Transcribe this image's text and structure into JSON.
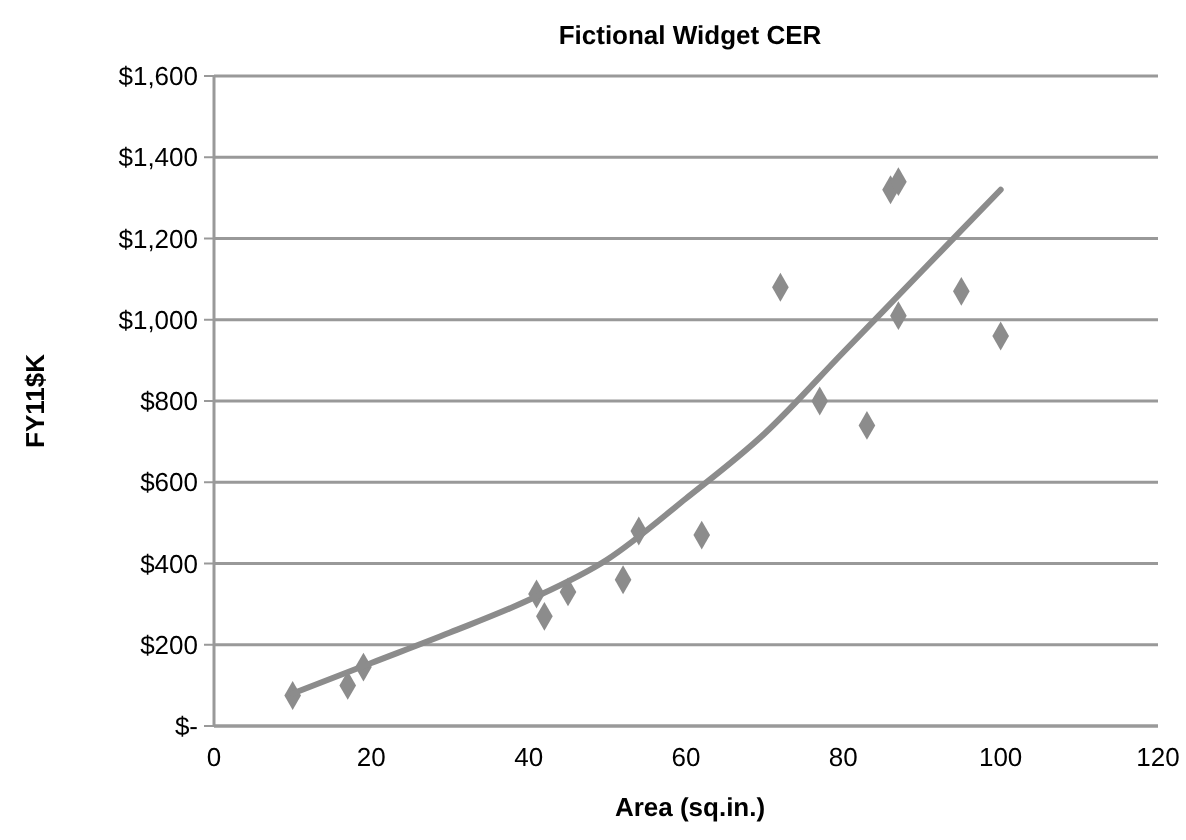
{
  "chart_data": {
    "type": "scatter",
    "title": "Fictional Widget CER",
    "xlabel": "Area (sq.in.)",
    "ylabel": "FY11$K",
    "xlim": [
      0,
      120
    ],
    "xticks": [
      0,
      20,
      40,
      60,
      80,
      100,
      120
    ],
    "ylim": [
      0,
      1600
    ],
    "yticks": [
      {
        "value": 0,
        "label": "$-"
      },
      {
        "value": 200,
        "label": "$200"
      },
      {
        "value": 400,
        "label": "$400"
      },
      {
        "value": 600,
        "label": "$600"
      },
      {
        "value": 800,
        "label": "$800"
      },
      {
        "value": 1000,
        "label": "$1,000"
      },
      {
        "value": 1200,
        "label": "$1,200"
      },
      {
        "value": 1400,
        "label": "$1,400"
      },
      {
        "value": 1600,
        "label": "$1,600"
      }
    ],
    "grid": "y",
    "marker": "diamond",
    "series": [
      {
        "color": "#8c8c8c",
        "x": [
          10,
          17,
          19,
          41,
          42,
          45,
          52,
          54,
          62,
          72,
          77,
          83,
          86,
          87,
          87,
          95,
          100
        ],
        "values": [
          75,
          100,
          145,
          325,
          270,
          330,
          360,
          480,
          470,
          1080,
          800,
          740,
          1320,
          1340,
          1010,
          1070,
          960
        ]
      },
      {
        "type": "line",
        "color": "#8c8c8c",
        "line_style": "solid",
        "marker": "none",
        "x": [
          10,
          20,
          30,
          40,
          50,
          60,
          70,
          80,
          90,
          100
        ],
        "values": [
          80,
          155,
          230,
          310,
          410,
          560,
          720,
          920,
          1120,
          1320
        ]
      }
    ]
  }
}
